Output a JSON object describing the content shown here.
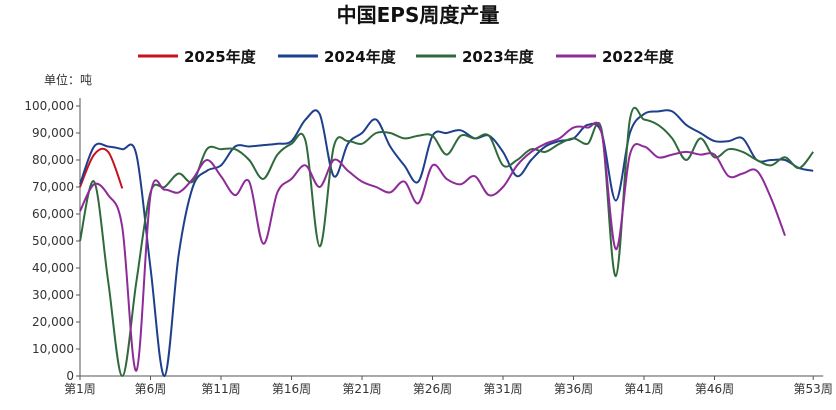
{
  "chart_data": {
    "type": "line",
    "title": "中国EPS周度产量",
    "y_unit_label": "单位：吨",
    "categories": [
      "第1周",
      null,
      null,
      null,
      null,
      "第6周",
      null,
      null,
      null,
      null,
      "第11周",
      null,
      null,
      null,
      null,
      "第16周",
      null,
      null,
      null,
      null,
      "第21周",
      null,
      null,
      null,
      null,
      "第26周",
      null,
      null,
      null,
      null,
      "第31周",
      null,
      null,
      null,
      null,
      "第36周",
      null,
      null,
      null,
      null,
      "第41周",
      null,
      null,
      null,
      null,
      "第46周",
      null,
      null,
      null,
      null,
      null,
      null,
      "第53周"
    ],
    "ylim": [
      0,
      100000
    ],
    "yticks": [
      0,
      {
        "value": 10000,
        "label": "10,000"
      },
      {
        "value": 20000,
        "label": "20,000"
      },
      {
        "value": 30000,
        "label": "30,000"
      },
      {
        "value": 40000,
        "label": "40,000"
      },
      {
        "value": 50000,
        "label": "50,000"
      },
      {
        "value": 60000,
        "label": "60,000"
      },
      {
        "value": 70000,
        "label": "70,000"
      },
      {
        "value": 80000,
        "label": "80,000"
      },
      {
        "value": 90000,
        "label": "90,000"
      },
      {
        "value": 100000,
        "label": "100,000"
      }
    ],
    "series": [
      {
        "name": "2025年度",
        "color": "#c8101e",
        "values": [
          70000,
          82000,
          83000,
          69500,
          null,
          null,
          null,
          null,
          null,
          null,
          null,
          null,
          null,
          null,
          null,
          null,
          null,
          null,
          null,
          null,
          null,
          null,
          null,
          null,
          null,
          null,
          null,
          null,
          null,
          null,
          null,
          null,
          null,
          null,
          null,
          null,
          null,
          null,
          null,
          null,
          null,
          null,
          null,
          null,
          null,
          null,
          null,
          null,
          null,
          null,
          null,
          null,
          null
        ]
      },
      {
        "name": "2024年度",
        "color": "#1d3f8c",
        "values": [
          71000,
          85000,
          85000,
          84000,
          82000,
          40000,
          0,
          45000,
          70000,
          76000,
          78000,
          85000,
          85000,
          85500,
          86000,
          87000,
          95000,
          97000,
          74000,
          86000,
          90000,
          95000,
          85000,
          78000,
          72000,
          89000,
          90000,
          91000,
          88000,
          89000,
          83000,
          74000,
          80000,
          85000,
          87000,
          88000,
          93000,
          90000,
          65000,
          90000,
          97000,
          98000,
          98000,
          93000,
          90000,
          87000,
          87000,
          88000,
          80000,
          80000,
          80000,
          77000,
          76000
        ]
      },
      {
        "name": "2023年度",
        "color": "#2f6a3c",
        "values": [
          50000,
          72000,
          35000,
          0,
          35000,
          68000,
          70000,
          75000,
          72000,
          84000,
          84000,
          84000,
          80000,
          73000,
          82000,
          86000,
          87000,
          48000,
          85000,
          87000,
          86000,
          90000,
          90000,
          88000,
          89000,
          89000,
          82000,
          89000,
          88000,
          89000,
          78000,
          80000,
          84000,
          83000,
          86000,
          88000,
          86000,
          91000,
          37000,
          95000,
          95000,
          93000,
          88000,
          80000,
          88000,
          81000,
          84000,
          83000,
          80000,
          78000,
          81000,
          77000,
          83000
        ]
      },
      {
        "name": "2022年度",
        "color": "#8e2b98",
        "values": [
          61000,
          71000,
          67000,
          55000,
          2000,
          67000,
          69000,
          68000,
          73000,
          80000,
          74000,
          67000,
          72000,
          49000,
          68000,
          73000,
          78000,
          70000,
          80000,
          76000,
          72000,
          70000,
          68000,
          72000,
          64000,
          78000,
          73000,
          71000,
          74000,
          67000,
          70000,
          78000,
          83000,
          86000,
          88000,
          92000,
          92000,
          90000,
          47000,
          82000,
          85000,
          81000,
          82000,
          83000,
          82000,
          82000,
          74000,
          75000,
          76000,
          66000,
          52000,
          null,
          null
        ]
      }
    ]
  }
}
